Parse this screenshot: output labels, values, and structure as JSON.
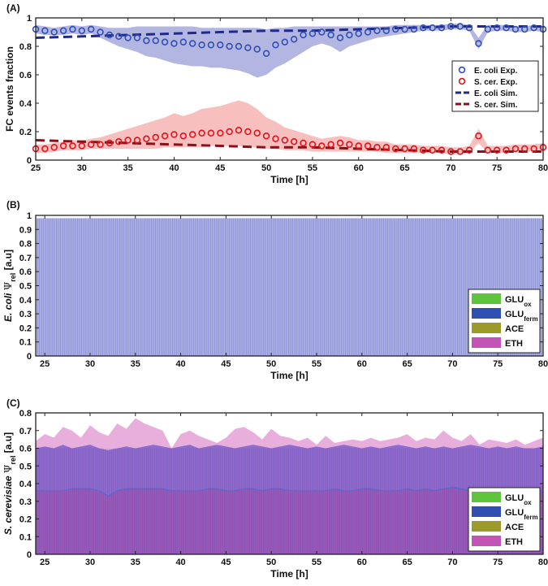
{
  "chart_data": [
    {
      "panel": "(A)",
      "type": "line",
      "xlabel": "Time [h]",
      "ylabel": "FC events fraction",
      "xlim": [
        25,
        80
      ],
      "ylim": [
        0,
        1
      ],
      "xticks": [
        25,
        30,
        35,
        40,
        45,
        50,
        55,
        60,
        65,
        70,
        75,
        80
      ],
      "yticks": [
        0,
        0.2,
        0.4,
        0.6,
        0.8,
        1
      ],
      "xtick_labels": [
        "25",
        "30",
        "35",
        "40",
        "45",
        "50",
        "55",
        "60",
        "65",
        "70",
        "75",
        "80"
      ],
      "ytick_labels": [
        "0",
        "0.2",
        "0.4",
        "0.6",
        "0.8",
        "1"
      ],
      "legend_position": "right",
      "series": [
        {
          "name": "E. coli Exp.",
          "marker": "circle",
          "color": "#2f4fb3",
          "x": [
            25,
            26,
            27,
            28,
            29,
            30,
            31,
            32,
            33,
            34,
            35,
            36,
            37,
            38,
            39,
            40,
            41,
            42,
            43,
            44,
            45,
            46,
            47,
            48,
            49,
            50,
            51,
            52,
            53,
            54,
            55,
            56,
            57,
            58,
            59,
            60,
            61,
            62,
            63,
            64,
            65,
            66,
            67,
            68,
            69,
            70,
            71,
            72,
            73,
            74,
            75,
            76,
            77,
            78,
            79,
            80
          ],
          "y": [
            0.92,
            0.91,
            0.9,
            0.91,
            0.92,
            0.91,
            0.92,
            0.9,
            0.88,
            0.87,
            0.86,
            0.86,
            0.84,
            0.84,
            0.83,
            0.82,
            0.83,
            0.82,
            0.81,
            0.81,
            0.81,
            0.8,
            0.8,
            0.79,
            0.78,
            0.75,
            0.81,
            0.83,
            0.85,
            0.88,
            0.89,
            0.9,
            0.88,
            0.86,
            0.88,
            0.89,
            0.9,
            0.91,
            0.91,
            0.92,
            0.92,
            0.92,
            0.93,
            0.93,
            0.93,
            0.94,
            0.94,
            0.93,
            0.82,
            0.92,
            0.93,
            0.93,
            0.92,
            0.92,
            0.93,
            0.92
          ],
          "band_low": [
            0.89,
            0.88,
            0.88,
            0.88,
            0.89,
            0.88,
            0.89,
            0.86,
            0.83,
            0.8,
            0.78,
            0.76,
            0.73,
            0.72,
            0.7,
            0.68,
            0.67,
            0.66,
            0.66,
            0.65,
            0.65,
            0.64,
            0.63,
            0.61,
            0.58,
            0.6,
            0.65,
            0.68,
            0.72,
            0.76,
            0.8,
            0.82,
            0.8,
            0.76,
            0.8,
            0.82,
            0.84,
            0.86,
            0.87,
            0.88,
            0.89,
            0.9,
            0.91,
            0.91,
            0.91,
            0.92,
            0.92,
            0.91,
            0.78,
            0.9,
            0.91,
            0.91,
            0.9,
            0.9,
            0.91,
            0.9
          ],
          "band_high": [
            0.95,
            0.94,
            0.93,
            0.94,
            0.95,
            0.94,
            0.95,
            0.94,
            0.93,
            0.93,
            0.93,
            0.94,
            0.94,
            0.94,
            0.94,
            0.94,
            0.94,
            0.94,
            0.93,
            0.93,
            0.93,
            0.93,
            0.93,
            0.93,
            0.93,
            0.92,
            0.93,
            0.93,
            0.94,
            0.94,
            0.94,
            0.94,
            0.94,
            0.94,
            0.94,
            0.94,
            0.94,
            0.94,
            0.94,
            0.95,
            0.95,
            0.95,
            0.95,
            0.95,
            0.95,
            0.96,
            0.96,
            0.95,
            0.86,
            0.95,
            0.95,
            0.95,
            0.94,
            0.94,
            0.95,
            0.94
          ],
          "band_color": "#9b9ed8"
        },
        {
          "name": "S. cer. Exp.",
          "marker": "circle",
          "color": "#e0141b",
          "x": [
            25,
            26,
            27,
            28,
            29,
            30,
            31,
            32,
            33,
            34,
            35,
            36,
            37,
            38,
            39,
            40,
            41,
            42,
            43,
            44,
            45,
            46,
            47,
            48,
            49,
            50,
            51,
            52,
            53,
            54,
            55,
            56,
            57,
            58,
            59,
            60,
            61,
            62,
            63,
            64,
            65,
            66,
            67,
            68,
            69,
            70,
            71,
            72,
            73,
            74,
            75,
            76,
            77,
            78,
            79,
            80
          ],
          "y": [
            0.08,
            0.08,
            0.09,
            0.1,
            0.1,
            0.1,
            0.11,
            0.11,
            0.12,
            0.13,
            0.14,
            0.14,
            0.15,
            0.16,
            0.17,
            0.18,
            0.17,
            0.18,
            0.19,
            0.19,
            0.19,
            0.2,
            0.21,
            0.2,
            0.19,
            0.17,
            0.15,
            0.14,
            0.13,
            0.12,
            0.11,
            0.1,
            0.11,
            0.12,
            0.11,
            0.1,
            0.1,
            0.09,
            0.09,
            0.08,
            0.08,
            0.08,
            0.07,
            0.07,
            0.07,
            0.06,
            0.06,
            0.07,
            0.17,
            0.07,
            0.07,
            0.07,
            0.08,
            0.08,
            0.08,
            0.09
          ],
          "band_low": [
            0.05,
            0.05,
            0.06,
            0.07,
            0.07,
            0.07,
            0.08,
            0.08,
            0.08,
            0.08,
            0.08,
            0.08,
            0.08,
            0.08,
            0.09,
            0.09,
            0.09,
            0.09,
            0.09,
            0.1,
            0.1,
            0.1,
            0.1,
            0.09,
            0.09,
            0.08,
            0.08,
            0.07,
            0.07,
            0.07,
            0.06,
            0.06,
            0.06,
            0.06,
            0.06,
            0.06,
            0.06,
            0.06,
            0.05,
            0.05,
            0.05,
            0.05,
            0.05,
            0.05,
            0.05,
            0.04,
            0.04,
            0.05,
            0.12,
            0.05,
            0.05,
            0.05,
            0.06,
            0.06,
            0.06,
            0.06
          ],
          "band_high": [
            0.11,
            0.11,
            0.12,
            0.13,
            0.14,
            0.14,
            0.15,
            0.16,
            0.18,
            0.2,
            0.22,
            0.24,
            0.26,
            0.28,
            0.3,
            0.33,
            0.31,
            0.33,
            0.36,
            0.37,
            0.38,
            0.4,
            0.42,
            0.4,
            0.36,
            0.3,
            0.27,
            0.23,
            0.21,
            0.19,
            0.17,
            0.15,
            0.16,
            0.17,
            0.16,
            0.14,
            0.14,
            0.13,
            0.13,
            0.11,
            0.11,
            0.11,
            0.1,
            0.1,
            0.1,
            0.09,
            0.09,
            0.1,
            0.22,
            0.1,
            0.1,
            0.1,
            0.11,
            0.11,
            0.11,
            0.12
          ],
          "band_color": "#f6a9a9"
        },
        {
          "name": "E. coli Sim.",
          "line": "dashed",
          "color": "#1f2a8a",
          "x": [
            25,
            30,
            35,
            40,
            45,
            50,
            55,
            60,
            65,
            70,
            75,
            80
          ],
          "y": [
            0.86,
            0.87,
            0.88,
            0.89,
            0.9,
            0.91,
            0.91,
            0.92,
            0.93,
            0.94,
            0.94,
            0.94
          ]
        },
        {
          "name": "S. cer. Sim.",
          "line": "dashed",
          "color": "#8a1118",
          "x": [
            25,
            30,
            35,
            40,
            45,
            50,
            55,
            60,
            65,
            70,
            75,
            80
          ],
          "y": [
            0.14,
            0.13,
            0.12,
            0.11,
            0.1,
            0.09,
            0.09,
            0.08,
            0.07,
            0.06,
            0.06,
            0.06
          ]
        }
      ]
    },
    {
      "panel": "(B)",
      "type": "area",
      "stacked": true,
      "xlabel": "Time [h]",
      "ylabel_italic": "E. coli",
      "ylabel_symbol": "Ψ",
      "ylabel_sub": "rel",
      "ylabel_unit": "[a.u]",
      "xlim": [
        24,
        80
      ],
      "ylim": [
        0,
        1
      ],
      "xticks": [
        25,
        30,
        35,
        40,
        45,
        50,
        55,
        60,
        65,
        70,
        75,
        80
      ],
      "yticks": [
        0,
        0.1,
        0.2,
        0.3,
        0.4,
        0.5,
        0.6,
        0.7,
        0.8,
        0.9,
        1
      ],
      "xtick_labels": [
        "25",
        "30",
        "35",
        "40",
        "45",
        "50",
        "55",
        "60",
        "65",
        "70",
        "75",
        "80"
      ],
      "ytick_labels": [
        "0",
        "0.1",
        "0.2",
        "0.3",
        "0.4",
        "0.5",
        "0.6",
        "0.7",
        "0.8",
        "0.9",
        "1"
      ],
      "legend_position": "right",
      "fill_top": 0.98,
      "series": [
        {
          "name": "GLU",
          "sub": "ox",
          "color": "#5ec43c"
        },
        {
          "name": "GLU",
          "sub": "ferm",
          "color": "#2f4fb3"
        },
        {
          "name": "ACE",
          "color": "#9b9a2a"
        },
        {
          "name": "ETH",
          "color": "#c353b4"
        }
      ]
    },
    {
      "panel": "(C)",
      "type": "area",
      "stacked": true,
      "xlabel": "Time [h]",
      "ylabel_italic": "S. cerevisiae",
      "ylabel_symbol": "Ψ",
      "ylabel_sub": "rel",
      "ylabel_unit": "[a.u]",
      "xlim": [
        24,
        80
      ],
      "ylim": [
        0,
        0.8
      ],
      "xticks": [
        25,
        30,
        35,
        40,
        45,
        50,
        55,
        60,
        65,
        70,
        75,
        80
      ],
      "yticks": [
        0,
        0.1,
        0.2,
        0.3,
        0.4,
        0.5,
        0.6,
        0.7,
        0.8
      ],
      "xtick_labels": [
        "25",
        "30",
        "35",
        "40",
        "45",
        "50",
        "55",
        "60",
        "65",
        "70",
        "75",
        "80"
      ],
      "ytick_labels": [
        "0",
        "0.1",
        "0.2",
        "0.3",
        "0.4",
        "0.5",
        "0.6",
        "0.7",
        "0.8"
      ],
      "legend_position": "right",
      "x": [
        24,
        25,
        26,
        27,
        28,
        29,
        30,
        31,
        32,
        33,
        34,
        35,
        36,
        37,
        38,
        39,
        40,
        41,
        42,
        43,
        44,
        45,
        46,
        47,
        48,
        49,
        50,
        51,
        52,
        53,
        54,
        55,
        56,
        57,
        58,
        59,
        60,
        61,
        62,
        63,
        64,
        65,
        66,
        67,
        68,
        69,
        70,
        71,
        72,
        73,
        74,
        75,
        76,
        77,
        78,
        79,
        80
      ],
      "eth_layer": [
        0.36,
        0.36,
        0.36,
        0.36,
        0.37,
        0.37,
        0.37,
        0.36,
        0.33,
        0.36,
        0.37,
        0.37,
        0.37,
        0.37,
        0.37,
        0.36,
        0.36,
        0.36,
        0.36,
        0.37,
        0.37,
        0.36,
        0.36,
        0.37,
        0.37,
        0.36,
        0.37,
        0.37,
        0.36,
        0.36,
        0.36,
        0.36,
        0.36,
        0.37,
        0.36,
        0.36,
        0.37,
        0.37,
        0.36,
        0.36,
        0.36,
        0.37,
        0.36,
        0.37,
        0.36,
        0.37,
        0.38,
        0.37,
        0.36,
        0.37,
        0.36,
        0.36,
        0.36,
        0.37,
        0.36,
        0.36,
        0.36
      ],
      "ferm_top": [
        0.6,
        0.61,
        0.6,
        0.62,
        0.6,
        0.61,
        0.62,
        0.6,
        0.59,
        0.6,
        0.61,
        0.6,
        0.61,
        0.62,
        0.61,
        0.6,
        0.61,
        0.62,
        0.6,
        0.61,
        0.62,
        0.61,
        0.6,
        0.61,
        0.62,
        0.61,
        0.6,
        0.61,
        0.62,
        0.61,
        0.6,
        0.61,
        0.6,
        0.61,
        0.62,
        0.61,
        0.6,
        0.61,
        0.6,
        0.61,
        0.62,
        0.61,
        0.6,
        0.61,
        0.6,
        0.61,
        0.6,
        0.61,
        0.62,
        0.61,
        0.6,
        0.61,
        0.6,
        0.61,
        0.6,
        0.6,
        0.61
      ],
      "pink_top": [
        0.64,
        0.68,
        0.66,
        0.72,
        0.7,
        0.66,
        0.73,
        0.69,
        0.67,
        0.74,
        0.71,
        0.77,
        0.74,
        0.72,
        0.7,
        0.6,
        0.68,
        0.7,
        0.67,
        0.65,
        0.63,
        0.66,
        0.71,
        0.72,
        0.69,
        0.65,
        0.71,
        0.67,
        0.66,
        0.64,
        0.66,
        0.62,
        0.67,
        0.63,
        0.64,
        0.65,
        0.64,
        0.66,
        0.64,
        0.65,
        0.66,
        0.68,
        0.64,
        0.66,
        0.65,
        0.7,
        0.66,
        0.64,
        0.68,
        0.62,
        0.65,
        0.64,
        0.63,
        0.65,
        0.62,
        0.64,
        0.66
      ],
      "series": [
        {
          "name": "GLU",
          "sub": "ox",
          "color": "#5ec43c"
        },
        {
          "name": "GLU",
          "sub": "ferm",
          "color": "#2f4fb3"
        },
        {
          "name": "ACE",
          "color": "#9b9a2a"
        },
        {
          "name": "ETH",
          "color": "#c353b4"
        }
      ]
    }
  ]
}
